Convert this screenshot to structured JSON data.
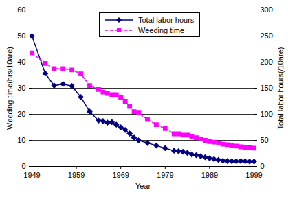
{
  "chart_data": {
    "type": "line",
    "x": [
      1949,
      1952,
      1954,
      1956,
      1958,
      1960,
      1962,
      1964,
      1965,
      1966,
      1967,
      1968,
      1969,
      1970,
      1971,
      1972,
      1973,
      1975,
      1977,
      1979,
      1981,
      1982,
      1983,
      1984,
      1985,
      1986,
      1987,
      1988,
      1989,
      1990,
      1991,
      1992,
      1993,
      1994,
      1995,
      1996,
      1997,
      1998,
      1999
    ],
    "xlim": [
      1949,
      1999
    ],
    "xticks": [
      1949,
      1959,
      1969,
      1979,
      1989,
      1999
    ],
    "xlabel": "Year",
    "ylabel": "Weeding time(hrs/10are)",
    "ylim": [
      0,
      60
    ],
    "yticks": [
      0,
      10,
      20,
      30,
      40,
      50,
      60
    ],
    "y2label": "Total labor hours(/10are)",
    "y2lim": [
      0,
      300
    ],
    "y2ticks": [
      0,
      50,
      100,
      150,
      200,
      250,
      300
    ],
    "grid": true,
    "legend": "top",
    "series": [
      {
        "name": "Total labor hours",
        "color": "#000080",
        "marker": "diamond",
        "line_style": "solid",
        "axis": "y2",
        "values": [
          250,
          178,
          155,
          158,
          154,
          133,
          105,
          88,
          87,
          84,
          85,
          80,
          75,
          70,
          63,
          55,
          50,
          45,
          40,
          35,
          30,
          29,
          28,
          26,
          23,
          21.5,
          19.5,
          17.5,
          15.5,
          14,
          12.5,
          11,
          10.5,
          10,
          10,
          10.5,
          10,
          9.5,
          9.5
        ]
      },
      {
        "name": "Weeding time",
        "color": "#ff00ff",
        "marker": "square",
        "line_style": "dashed",
        "values": [
          43.5,
          39.5,
          37.5,
          37.5,
          37,
          35.5,
          31,
          29.5,
          28.5,
          28,
          27.5,
          27.5,
          26.5,
          25,
          23,
          21,
          20.5,
          18,
          16,
          14.5,
          12.5,
          12.5,
          12,
          12,
          11.5,
          11,
          10.5,
          10,
          9.5,
          9.3,
          9,
          8.5,
          8.3,
          8,
          7.8,
          7.5,
          7.3,
          7.2,
          7
        ]
      }
    ]
  }
}
